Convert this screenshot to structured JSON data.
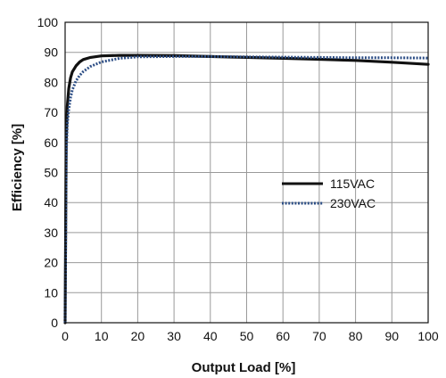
{
  "chart_data": {
    "type": "line",
    "title": "",
    "xlabel": "Output Load [%]",
    "ylabel": "Efficiency [%]",
    "xlim": [
      0,
      100
    ],
    "ylim": [
      0,
      100
    ],
    "xticks": [
      0,
      10,
      20,
      30,
      40,
      50,
      60,
      70,
      80,
      90,
      100
    ],
    "yticks": [
      0,
      10,
      20,
      30,
      40,
      50,
      60,
      70,
      80,
      90,
      100
    ],
    "grid": true,
    "legend_position": "right",
    "series": [
      {
        "name": "115VAC",
        "color": "#111111",
        "style": "solid",
        "x": [
          0,
          0.3,
          0.6,
          1,
          1.5,
          2,
          3,
          4,
          5,
          7,
          10,
          15,
          20,
          30,
          40,
          50,
          60,
          70,
          80,
          90,
          100
        ],
        "y": [
          0,
          60,
          72,
          78,
          81.5,
          83.5,
          85.5,
          86.8,
          87.6,
          88.3,
          88.8,
          89.0,
          89.0,
          88.9,
          88.6,
          88.3,
          88.0,
          87.7,
          87.3,
          86.7,
          86.0
        ]
      },
      {
        "name": "230VAC",
        "color": "#2e4f86",
        "style": "dotted",
        "x": [
          0,
          0.3,
          0.6,
          1,
          1.5,
          2,
          3,
          4,
          5,
          7,
          10,
          15,
          20,
          30,
          40,
          50,
          60,
          70,
          80,
          90,
          100
        ],
        "y": [
          0,
          55,
          66,
          71,
          75,
          77.5,
          80.5,
          82.3,
          83.6,
          85.3,
          86.8,
          88.0,
          88.5,
          88.6,
          88.6,
          88.5,
          88.4,
          88.3,
          88.2,
          88.2,
          88.1
        ]
      }
    ]
  }
}
